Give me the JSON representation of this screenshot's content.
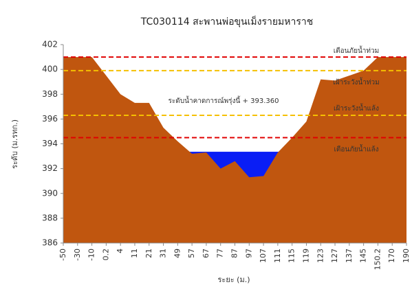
{
  "chart_data": {
    "type": "area",
    "title": "TC030114 สะพานพ่อขุนเม็งรายมหาราช",
    "xlabel": "ระยะ (ม.)",
    "ylabel": "ระดับ (ม.รทก.)",
    "categories": [
      "-50",
      "-30",
      "-10",
      "0.2",
      "4",
      "11",
      "21",
      "31",
      "49",
      "57",
      "67",
      "77",
      "87",
      "97",
      "107",
      "111",
      "115",
      "119",
      "123",
      "127",
      "137",
      "145",
      "150.2",
      "170",
      "190"
    ],
    "values": [
      401,
      401,
      401,
      399.5,
      398,
      397.3,
      397.3,
      395.3,
      394.2,
      393.2,
      393.3,
      392.0,
      392.6,
      391.3,
      391.4,
      393.3,
      394.5,
      395.8,
      399.2,
      399.1,
      399.5,
      399.9,
      401,
      401,
      401
    ],
    "color": "#c0560f",
    "water_level": {
      "value": 393.36,
      "color": "#0a1ef5",
      "annotation": "ระดับน้ำคาดการณ์พรุ่งนี้ + 393.360"
    },
    "thresholds": [
      {
        "label": "เตือนภัยน้ำท่วม",
        "value": 401,
        "color": "#e00000"
      },
      {
        "label": "เฝ้าระวังน้ำท่วม",
        "value": 399.9,
        "color": "#f5c000"
      },
      {
        "label": "เฝ้าระวังน้ำแล้ง",
        "value": 396.3,
        "color": "#f5c000"
      },
      {
        "label": "เตือนภัยน้ำแล้ง",
        "value": 394.5,
        "color": "#e00000"
      }
    ],
    "ylim": [
      386,
      402
    ],
    "yticks": [
      386,
      388,
      390,
      392,
      394,
      396,
      398,
      400,
      402
    ]
  }
}
